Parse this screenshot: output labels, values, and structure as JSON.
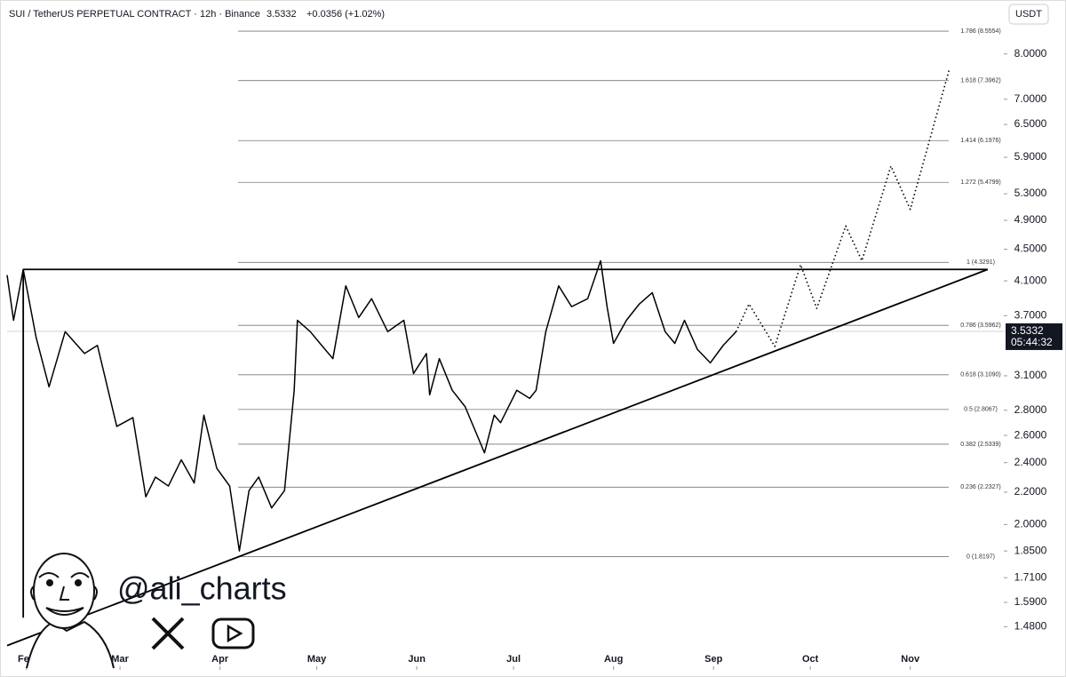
{
  "header": {
    "symbol": "SUI / TetherUS PERPETUAL CONTRACT · 12h · Binance",
    "change": "+0.0356 (+1.02%)",
    "currency": "USDT"
  },
  "watermark": {
    "handle": "@ali_charts"
  },
  "chart_data": {
    "type": "line",
    "log_scale": true,
    "grid": false,
    "last_price": 3.5332,
    "countdown": "05:44:32",
    "xlim": [
      -6,
      303
    ],
    "ylim": [
      1.31,
      8.67
    ],
    "xticks": [
      {
        "value": 0,
        "label": "Feb"
      },
      {
        "value": 29,
        "label": "Mar"
      },
      {
        "value": 60,
        "label": "Apr"
      },
      {
        "value": 90,
        "label": "May"
      },
      {
        "value": 121,
        "label": "Jun"
      },
      {
        "value": 151,
        "label": "Jul"
      },
      {
        "value": 182,
        "label": "Aug"
      },
      {
        "value": 213,
        "label": "Sep"
      },
      {
        "value": 243,
        "label": "Oct"
      },
      {
        "value": 274,
        "label": "Nov"
      }
    ],
    "yticks": [
      {
        "value": 8.0,
        "label": "8.0000"
      },
      {
        "value": 7.0,
        "label": "7.0000"
      },
      {
        "value": 6.5,
        "label": "6.5000"
      },
      {
        "value": 5.9,
        "label": "5.9000"
      },
      {
        "value": 5.3,
        "label": "5.3000"
      },
      {
        "value": 4.9,
        "label": "4.9000"
      },
      {
        "value": 4.5,
        "label": "4.5000"
      },
      {
        "value": 4.1,
        "label": "4.1000"
      },
      {
        "value": 3.7,
        "label": "3.7000"
      },
      {
        "value": 3.1,
        "label": "3.1000"
      },
      {
        "value": 2.8,
        "label": "2.8000"
      },
      {
        "value": 2.6,
        "label": "2.6000"
      },
      {
        "value": 2.4,
        "label": "2.4000"
      },
      {
        "value": 2.2,
        "label": "2.2000"
      },
      {
        "value": 2.0,
        "label": "2.0000"
      },
      {
        "value": 1.85,
        "label": "1.8500"
      },
      {
        "value": 1.71,
        "label": "1.7100"
      },
      {
        "value": 1.59,
        "label": "1.5900"
      },
      {
        "value": 1.48,
        "label": "1.4800"
      }
    ],
    "fib_levels": [
      {
        "value": 8.5554,
        "label": "1.786 (8.5554)"
      },
      {
        "value": 7.3962,
        "label": "1.618 (7.3962)"
      },
      {
        "value": 6.1976,
        "label": "1.414 (6.1976)"
      },
      {
        "value": 5.4799,
        "label": "1.272 (5.4799)"
      },
      {
        "value": 4.3291,
        "label": "1 (4.3291)"
      },
      {
        "value": 3.5962,
        "label": "0.786 (3.5962)"
      },
      {
        "value": 3.109,
        "label": "0.618 (3.1090)"
      },
      {
        "value": 2.8067,
        "label": "0.5 (2.8067)"
      },
      {
        "value": 2.5339,
        "label": "0.382 (2.5339)"
      },
      {
        "value": 2.2327,
        "label": "0.236 (2.2327)"
      },
      {
        "value": 1.8197,
        "label": "0 (1.8197)"
      }
    ],
    "series": [
      {
        "color": "#000000",
        "dash": "solid",
        "x": [
          -6,
          -4,
          -1,
          3,
          7,
          12,
          18,
          22,
          28,
          33,
          37,
          40,
          44,
          48,
          52,
          55,
          59,
          63,
          66,
          69,
          72,
          76,
          80,
          83,
          84,
          88,
          91,
          95,
          99,
          103,
          107,
          112,
          117,
          120,
          124,
          125,
          128,
          132,
          136,
          142,
          145,
          147,
          152,
          156,
          158,
          161,
          165,
          169,
          174,
          178,
          180,
          182,
          186,
          190,
          194,
          198,
          201,
          204,
          208,
          212,
          216,
          220
        ],
        "values": [
          4.17,
          3.65,
          4.24,
          3.47,
          3.0,
          3.53,
          3.31,
          3.39,
          2.67,
          2.74,
          2.17,
          2.3,
          2.24,
          2.42,
          2.26,
          2.76,
          2.36,
          2.24,
          1.85,
          2.21,
          2.3,
          2.1,
          2.21,
          2.97,
          3.65,
          3.53,
          3.41,
          3.26,
          4.04,
          3.68,
          3.89,
          3.53,
          3.65,
          3.12,
          3.31,
          2.93,
          3.26,
          2.97,
          2.83,
          2.47,
          2.76,
          2.7,
          2.97,
          2.9,
          2.97,
          3.53,
          4.04,
          3.8,
          3.89,
          4.35,
          3.8,
          3.41,
          3.65,
          3.83,
          3.96,
          3.53,
          3.41,
          3.65,
          3.35,
          3.22,
          3.39,
          3.53
        ]
      },
      {
        "color": "#000000",
        "dash": "dotted",
        "x": [
          220,
          224,
          232,
          240,
          245,
          254,
          259,
          268,
          274,
          286
        ],
        "values": [
          3.53,
          3.83,
          3.38,
          4.3,
          3.78,
          4.82,
          4.35,
          5.75,
          5.06,
          7.62
        ]
      }
    ],
    "drawings": [
      {
        "x": [
          -6,
          298
        ],
        "y": [
          1.4,
          4.24
        ]
      },
      {
        "x": [
          -1,
          298
        ],
        "y": [
          4.24,
          4.24
        ]
      },
      {
        "x": [
          -1,
          -1
        ],
        "y": [
          1.52,
          4.24
        ]
      }
    ]
  }
}
